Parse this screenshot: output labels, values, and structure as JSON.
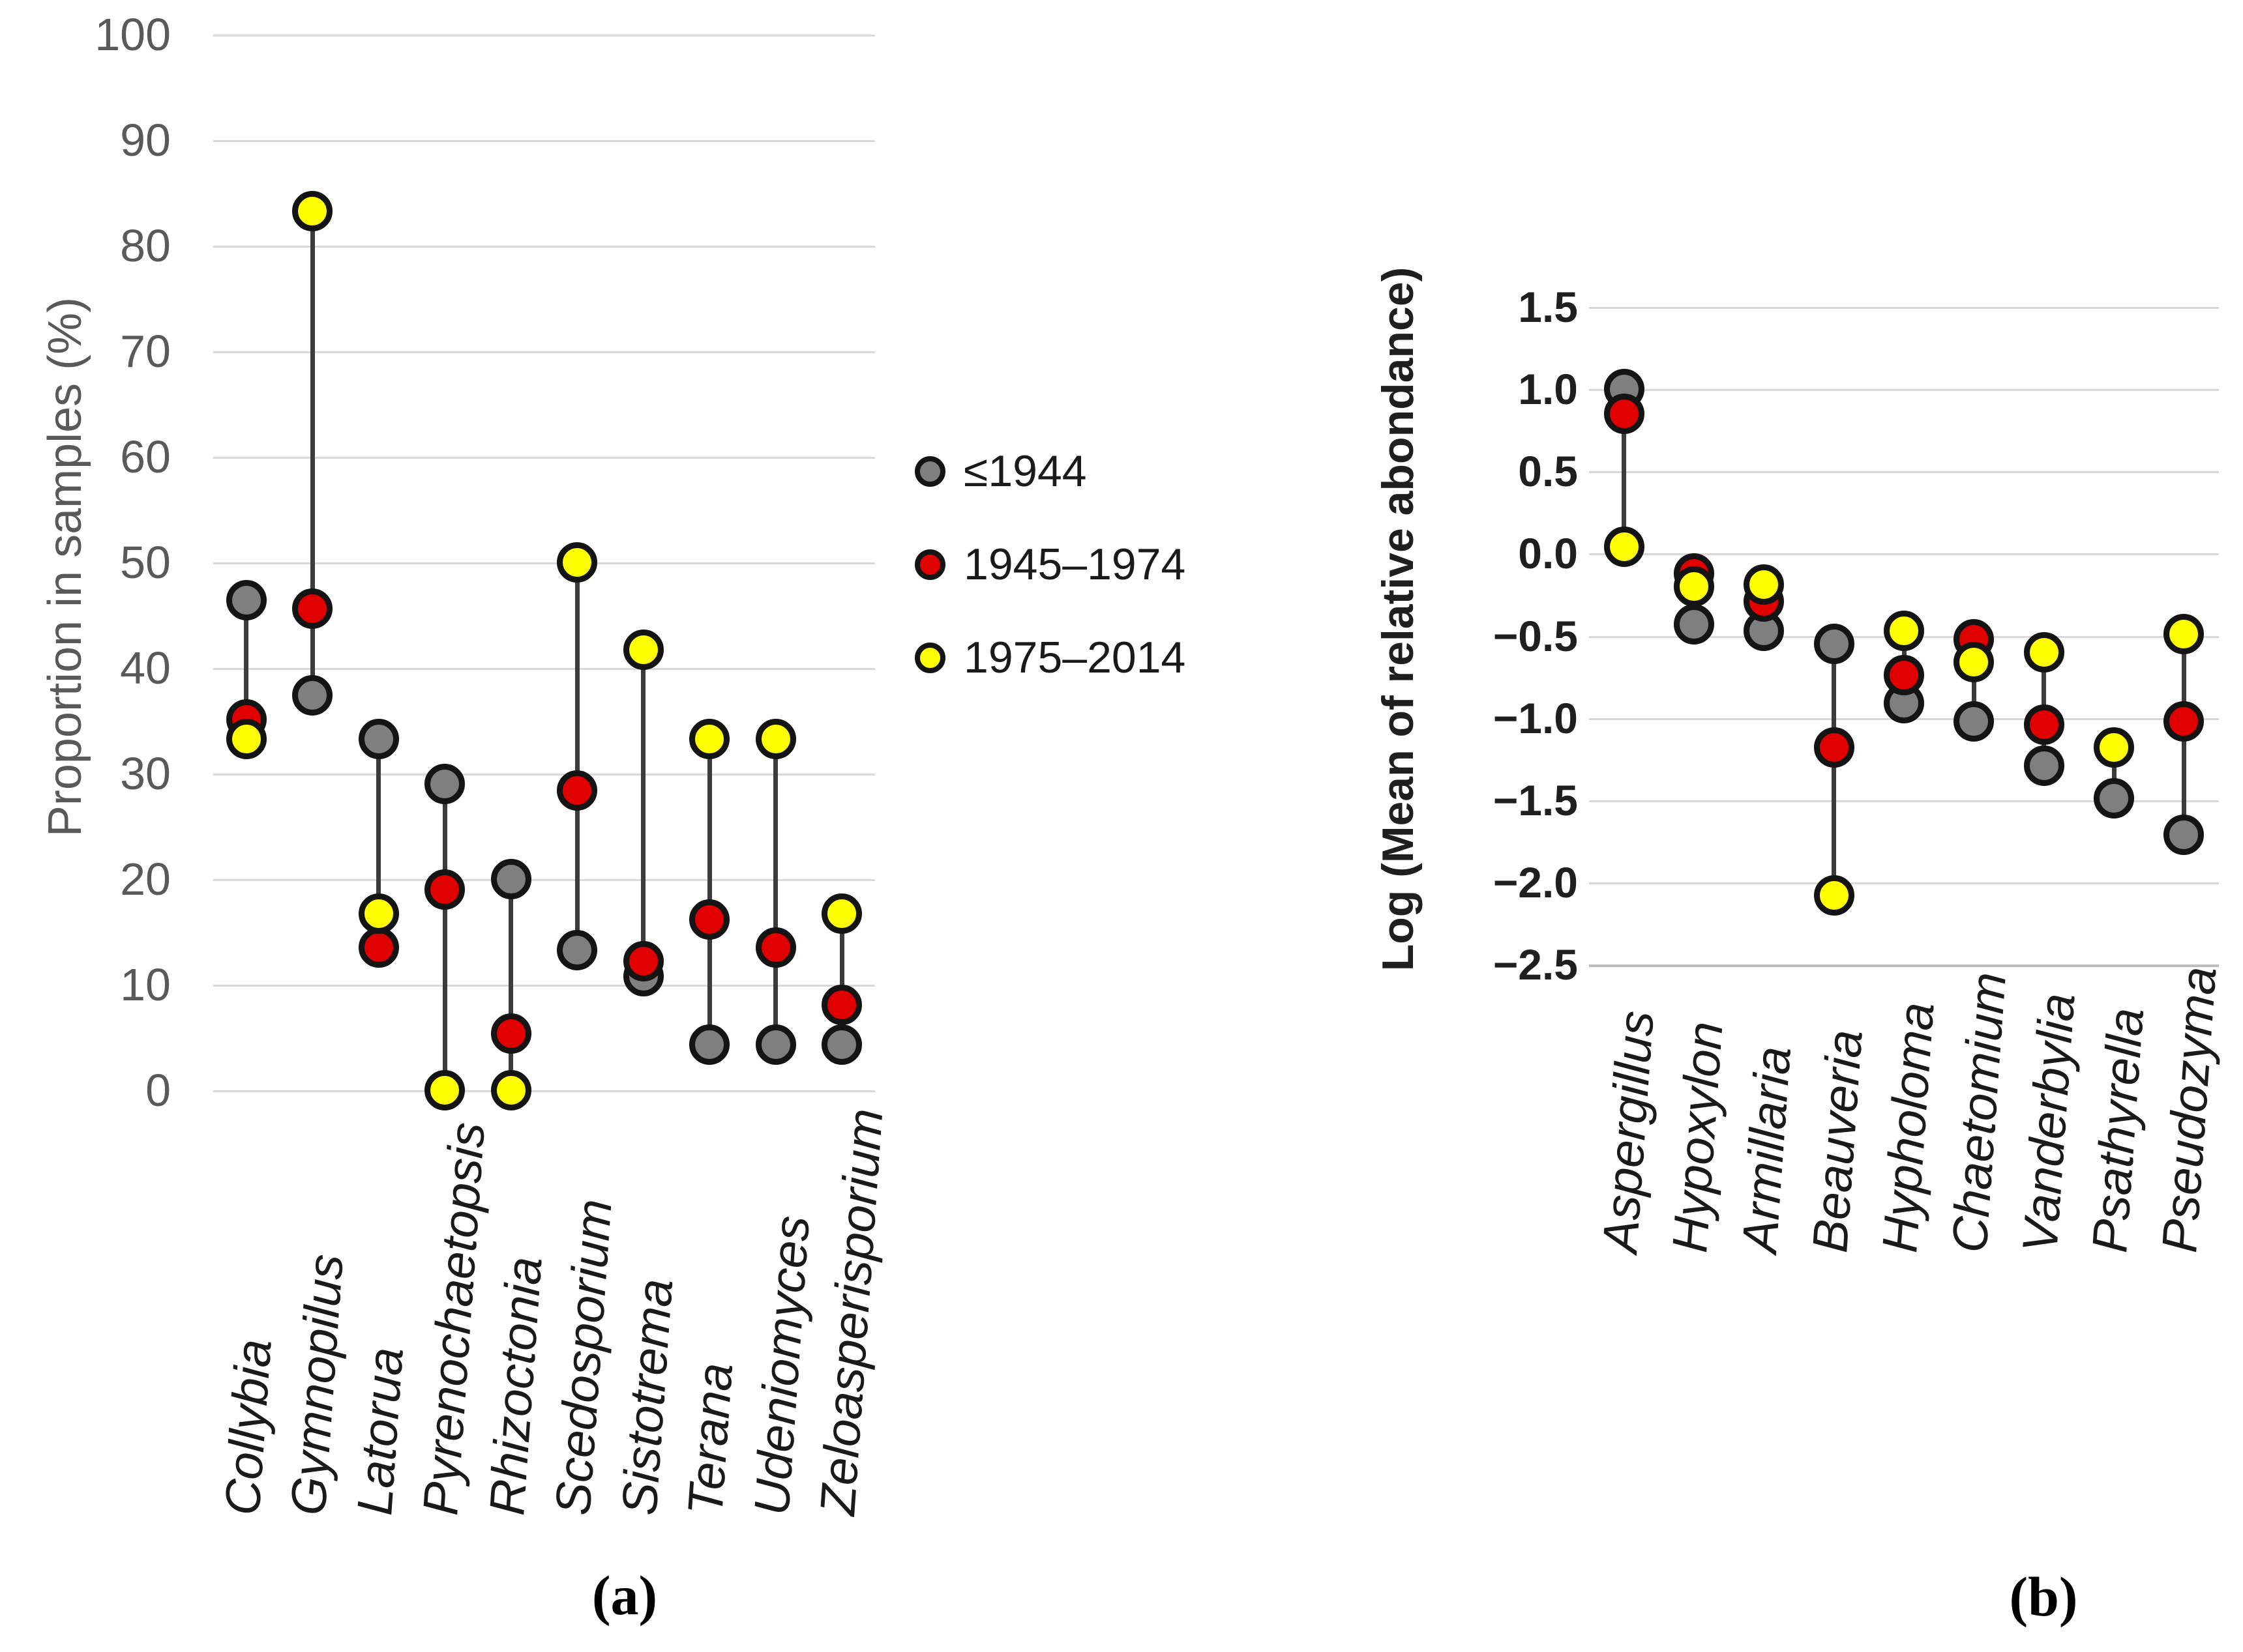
{
  "chart_data": [
    {
      "id": "a",
      "type": "scatter",
      "variant": "dumbbell-dot-plot",
      "caption": "(a)",
      "ylabel": "Proportion in samples (%)",
      "ylim": [
        0,
        100
      ],
      "ytick_step": 10,
      "ytick_format": "integer",
      "grid": true,
      "legend_position": "right-of-plot",
      "categories": [
        "Collybia",
        "Gymnopilus",
        "Latorua",
        "Pyrenochaetopsis",
        "Rhizoctonia",
        "Scedosporium",
        "Sistotrema",
        "Terana",
        "Udeniomyces",
        "Zeloasperisporium"
      ],
      "series": [
        {
          "name": "≤1944",
          "color": "#7f7f7f",
          "values": [
            46.4,
            37.4,
            33.3,
            29,
            20,
            13.3,
            10.8,
            4.3,
            4.3,
            4.3
          ]
        },
        {
          "name": "1945–1974",
          "color": "#e00000",
          "values": [
            35.1,
            45.6,
            13.5,
            19,
            5.4,
            28.4,
            12.2,
            16.2,
            13.5,
            8.1
          ]
        },
        {
          "name": "1975–2014",
          "color": "#ffff00",
          "values": [
            33.3,
            83.3,
            16.7,
            0,
            0,
            50,
            41.7,
            33.3,
            33.3,
            16.7
          ]
        }
      ]
    },
    {
      "id": "b",
      "type": "scatter",
      "variant": "dumbbell-dot-plot",
      "caption": "(b)",
      "ylabel": "Log (Mean of relative abondance)",
      "ylim": [
        -2.5,
        1.5
      ],
      "ytick_step": 0.5,
      "ytick_format": "decimal1",
      "grid": true,
      "categories": [
        "Aspergillus",
        "Hypoxylon",
        "Armillaria",
        "Beauveria",
        "Hypholoma",
        "Chaetomium",
        "Vanderbylia",
        "Psathyrella",
        "Pseudozyma"
      ],
      "series": [
        {
          "name": "≤1944",
          "color": "#7f7f7f",
          "values": [
            1.0,
            -0.43,
            -0.47,
            -0.55,
            -0.91,
            -1.02,
            -1.29,
            -1.49,
            -1.71
          ]
        },
        {
          "name": "1945–1974",
          "color": "#e00000",
          "values": [
            0.85,
            -0.12,
            -0.29,
            -1.18,
            -0.74,
            -0.52,
            -1.04,
            null,
            -1.02
          ]
        },
        {
          "name": "1975–2014",
          "color": "#ffff00",
          "values": [
            0.04,
            -0.2,
            -0.19,
            -2.08,
            -0.47,
            -0.66,
            -0.6,
            -1.18,
            -0.49
          ]
        }
      ]
    }
  ],
  "legend": {
    "items": [
      {
        "label": "≤1944",
        "color": "#7f7f7f"
      },
      {
        "label": "1945–1974",
        "color": "#e00000"
      },
      {
        "label": "1975–2014",
        "color": "#ffff00"
      }
    ]
  },
  "colors": {
    "gray": "#7f7f7f",
    "red": "#e00000",
    "yellow": "#ffff00",
    "marker_outline": "#141414",
    "connector": "#3c3c3c",
    "gridline": "#d9d9d9",
    "axis_text_a": "#595959",
    "axis_text_b": "#1f1f1f"
  }
}
